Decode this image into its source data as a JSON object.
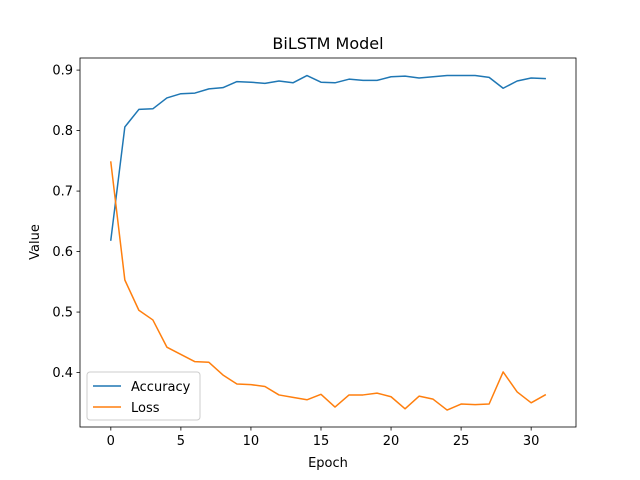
{
  "chart_data": {
    "type": "line",
    "title": "BiLSTM Model",
    "xlabel": "Epoch",
    "ylabel": "Value",
    "x": [
      0,
      1,
      2,
      3,
      4,
      5,
      6,
      7,
      8,
      9,
      10,
      11,
      12,
      13,
      14,
      15,
      16,
      17,
      18,
      19,
      20,
      21,
      22,
      23,
      24,
      25,
      26,
      27,
      28,
      29,
      30,
      31
    ],
    "xlim": [
      -2.2,
      33.2
    ],
    "ylim": [
      0.31,
      0.92
    ],
    "xticks": [
      0,
      5,
      10,
      15,
      20,
      25,
      30
    ],
    "yticks": [
      0.4,
      0.5,
      0.6,
      0.7,
      0.8,
      0.9
    ],
    "ytick_labels": [
      "0.4",
      "0.5",
      "0.6",
      "0.7",
      "0.8",
      "0.9"
    ],
    "grid": false,
    "legend_position": "lower-left",
    "series": [
      {
        "name": "Accuracy",
        "color": "#1f77b4",
        "values": [
          0.619,
          0.806,
          0.835,
          0.836,
          0.854,
          0.861,
          0.862,
          0.869,
          0.871,
          0.881,
          0.88,
          0.878,
          0.882,
          0.879,
          0.891,
          0.88,
          0.879,
          0.885,
          0.883,
          0.883,
          0.889,
          0.89,
          0.887,
          0.889,
          0.891,
          0.891,
          0.891,
          0.888,
          0.87,
          0.882,
          0.887,
          0.886
        ]
      },
      {
        "name": "Loss",
        "color": "#ff7f0e",
        "values": [
          0.748,
          0.553,
          0.503,
          0.487,
          0.442,
          0.43,
          0.418,
          0.417,
          0.396,
          0.381,
          0.38,
          0.377,
          0.363,
          0.359,
          0.355,
          0.364,
          0.343,
          0.363,
          0.363,
          0.366,
          0.36,
          0.34,
          0.361,
          0.356,
          0.338,
          0.348,
          0.347,
          0.348,
          0.401,
          0.368,
          0.35,
          0.363
        ]
      }
    ]
  }
}
